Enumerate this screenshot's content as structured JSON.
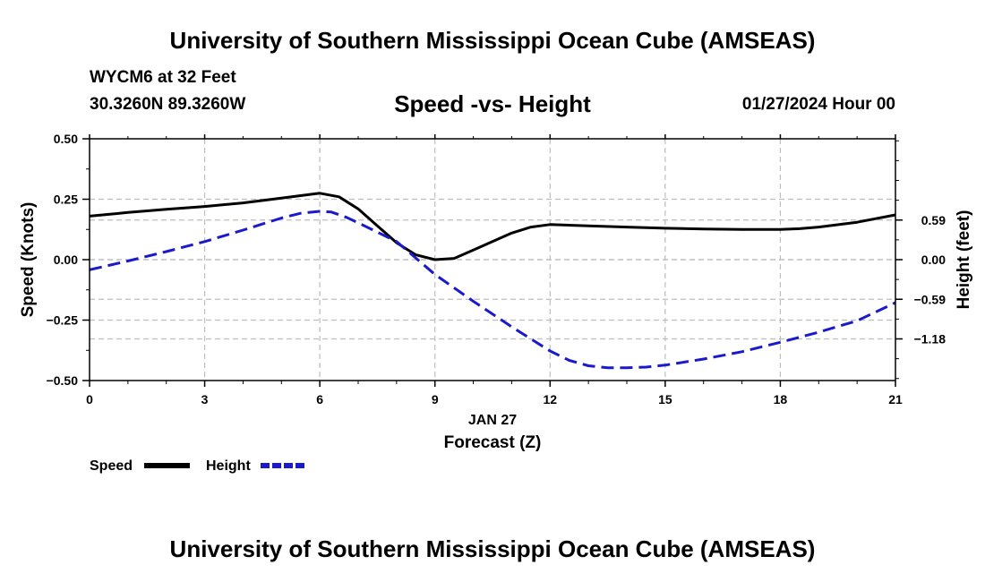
{
  "header": {
    "title": "University of Southern Mississippi Ocean Cube (AMSEAS)",
    "station": "WYCM6 at 32 Feet",
    "coordinates": "30.3260N  89.3260W",
    "date": "01/27/2024 Hour 00"
  },
  "footer": {
    "title": "University of Southern Mississippi Ocean Cube (AMSEAS)"
  },
  "chart_data": {
    "type": "line",
    "title": "Speed -vs- Height",
    "xlabel": "Forecast (Z)",
    "xsublabel": "JAN 27",
    "ylabel": "Speed (Knots)",
    "y2label": "Height (feet)",
    "xlim": [
      0,
      21
    ],
    "ylim": [
      -0.5,
      0.5
    ],
    "y2lim": [
      -1.8,
      1.8
    ],
    "x_ticks": [
      0,
      3,
      6,
      9,
      12,
      15,
      18,
      21
    ],
    "y_ticks": [
      0.5,
      0.25,
      0.0,
      -0.25,
      -0.5
    ],
    "y_tick_labels": [
      "0.50",
      "0.25",
      "0.00",
      "−0.25",
      "−0.50"
    ],
    "y2_ticks": [
      0.59,
      0.0,
      -0.59,
      -1.18
    ],
    "y2_tick_labels": [
      "0.59",
      "0.00",
      "−0.59",
      "−1.18"
    ],
    "grid": true,
    "series": [
      {
        "name": "Speed",
        "axis": "left",
        "color": "#000000",
        "style": "solid",
        "x": [
          0,
          1,
          2,
          3,
          4,
          5,
          6,
          6.5,
          7,
          7.5,
          8,
          8.5,
          9,
          9.5,
          10,
          11,
          11.5,
          12,
          13,
          14,
          15,
          16,
          17,
          18,
          18.5,
          19,
          20,
          21
        ],
        "values": [
          0.18,
          0.195,
          0.208,
          0.22,
          0.235,
          0.255,
          0.275,
          0.26,
          0.21,
          0.14,
          0.07,
          0.02,
          0.0,
          0.005,
          0.04,
          0.11,
          0.135,
          0.145,
          0.14,
          0.135,
          0.13,
          0.127,
          0.125,
          0.125,
          0.128,
          0.135,
          0.155,
          0.185
        ]
      },
      {
        "name": "Height",
        "axis": "right",
        "color": "#1a1acc",
        "style": "dashed",
        "x": [
          0,
          1,
          2,
          3,
          4,
          5,
          5.5,
          6,
          6.3,
          6.7,
          7,
          8,
          9,
          10,
          11,
          12,
          12.5,
          13,
          13.5,
          14,
          14.5,
          15,
          16,
          17,
          18,
          19,
          20,
          21
        ],
        "values": [
          -0.15,
          -0.02,
          0.12,
          0.27,
          0.44,
          0.62,
          0.69,
          0.72,
          0.71,
          0.63,
          0.55,
          0.27,
          -0.22,
          -0.62,
          -1.0,
          -1.36,
          -1.5,
          -1.58,
          -1.61,
          -1.61,
          -1.6,
          -1.57,
          -1.48,
          -1.37,
          -1.23,
          -1.08,
          -0.91,
          -0.64
        ]
      }
    ],
    "legend": [
      {
        "label": "Speed",
        "color": "#000000",
        "style": "solid"
      },
      {
        "label": "Height",
        "color": "#1a1acc",
        "style": "dashed"
      }
    ]
  }
}
